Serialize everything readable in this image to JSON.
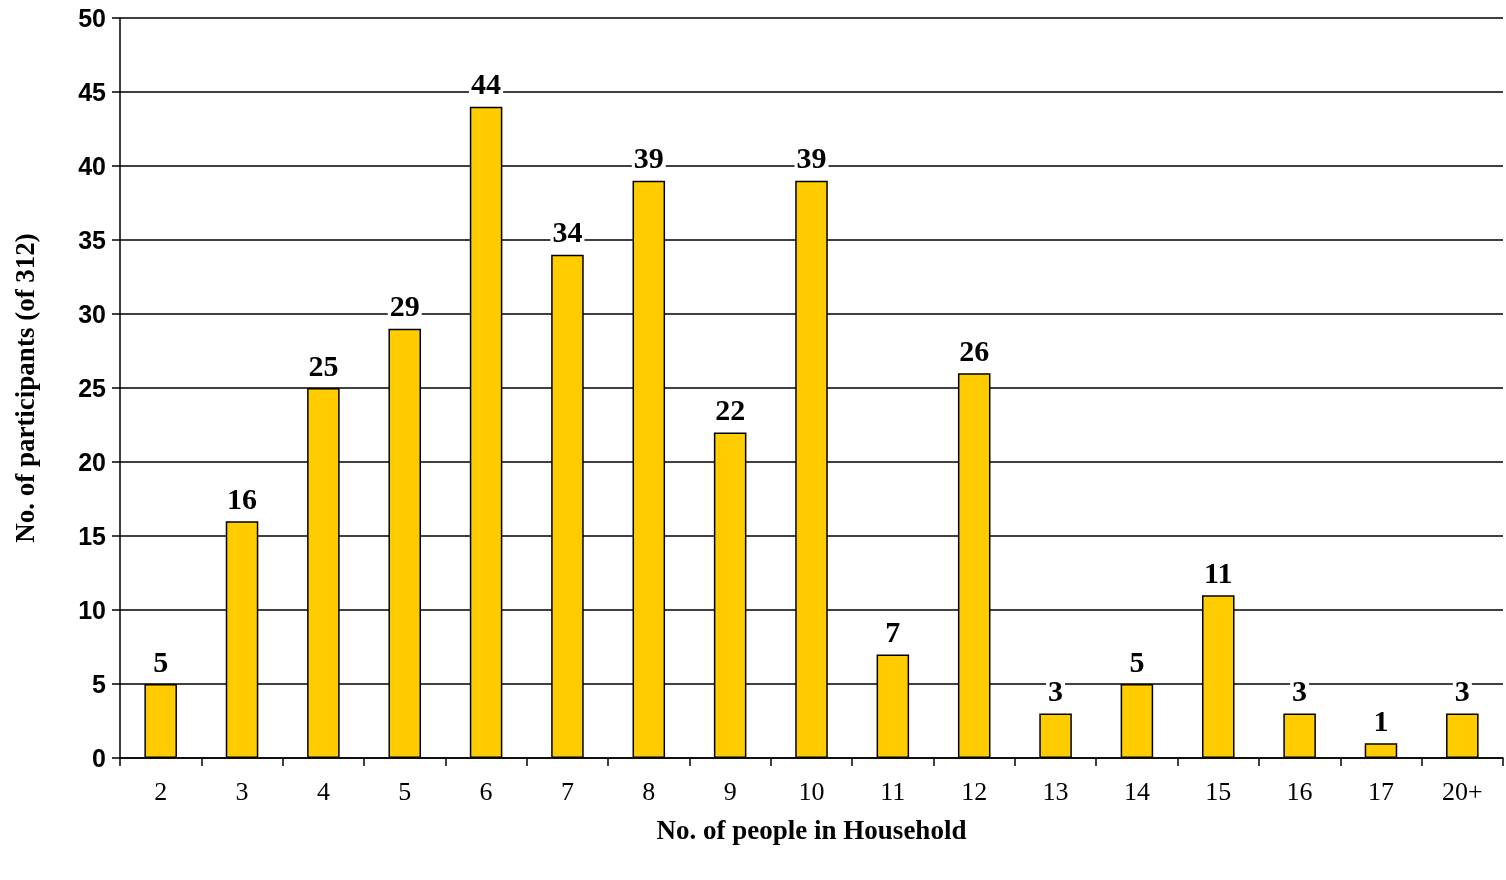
{
  "chart_data": {
    "type": "bar",
    "xlabel": "No. of people in Household",
    "ylabel": "No. of participants (of 312)",
    "categories": [
      "2",
      "3",
      "4",
      "5",
      "6",
      "7",
      "8",
      "9",
      "10",
      "11",
      "12",
      "13",
      "14",
      "15",
      "16",
      "17",
      "20+"
    ],
    "values": [
      5,
      16,
      25,
      29,
      44,
      34,
      39,
      22,
      39,
      7,
      26,
      3,
      5,
      11,
      3,
      1,
      3
    ],
    "color": "#ffcc00",
    "ylim": [
      0,
      50
    ],
    "yticks": [
      0,
      5,
      10,
      15,
      20,
      25,
      30,
      35,
      40,
      45,
      50
    ],
    "grid": "y",
    "data_labels": true
  }
}
